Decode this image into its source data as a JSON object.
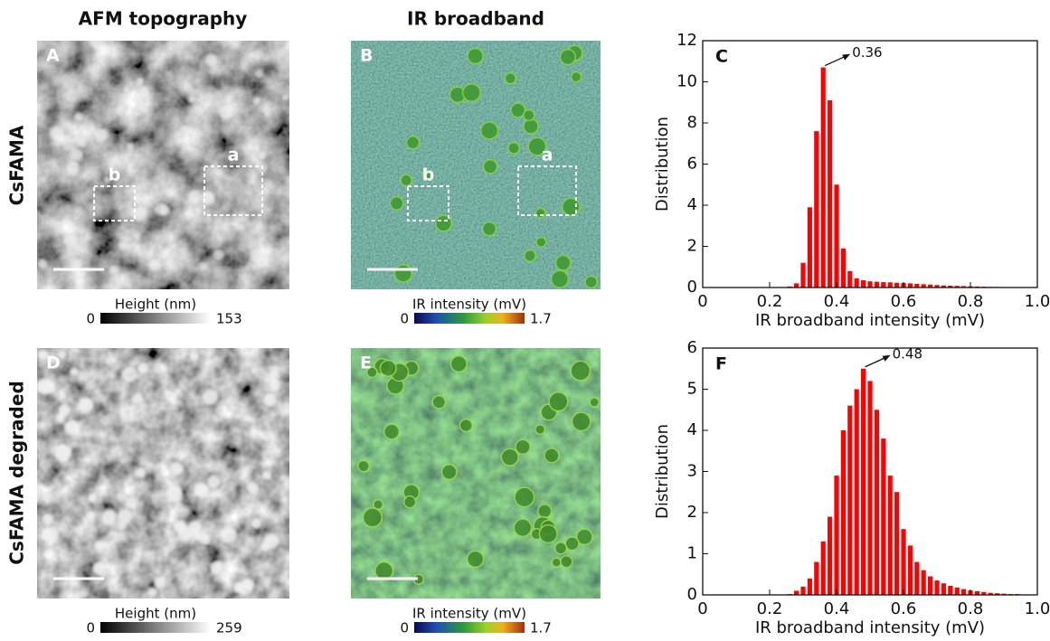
{
  "figure": {
    "column_titles": [
      "AFM topography",
      "IR broadband"
    ],
    "row_titles": [
      "CsFAMA",
      "CsFAMA degraded"
    ],
    "panels": [
      {
        "letter": "A",
        "colorbar": {
          "title": "Height (nm)",
          "min": 0,
          "max": 153
        },
        "regions": [
          "a",
          "b"
        ]
      },
      {
        "letter": "B",
        "colorbar": {
          "title": "IR intensity (mV)",
          "min": 0,
          "max": 1.7
        },
        "regions": [
          "a",
          "b"
        ]
      },
      {
        "letter": "D",
        "colorbar": {
          "title": "Height (nm)",
          "min": 0,
          "max": 259
        }
      },
      {
        "letter": "E",
        "colorbar": {
          "title": "IR intensity (mV)",
          "min": 0,
          "max": 1.7
        }
      }
    ]
  },
  "chart_data": [
    {
      "type": "histogram",
      "panel_label": "C",
      "xlabel": "IR broadband intensity (mV)",
      "ylabel": "Distribution",
      "annotation": "0.36",
      "color": "#ff0000",
      "bins": [
        0.25,
        0.27,
        0.29,
        0.31,
        0.33,
        0.35,
        0.37,
        0.39,
        0.41,
        0.43,
        0.45,
        0.47,
        0.49,
        0.51,
        0.53,
        0.55,
        0.57,
        0.59,
        0.61,
        0.63,
        0.65,
        0.67,
        0.69,
        0.71,
        0.73,
        0.75,
        0.77,
        0.79,
        0.81,
        0.83,
        0.85,
        0.87,
        0.89,
        0.91
      ],
      "values": [
        0.05,
        0.2,
        1.2,
        3.9,
        7.6,
        10.7,
        9.1,
        5.0,
        1.9,
        0.8,
        0.45,
        0.35,
        0.3,
        0.28,
        0.26,
        0.25,
        0.23,
        0.22,
        0.2,
        0.18,
        0.16,
        0.14,
        0.12,
        0.1,
        0.09,
        0.08,
        0.07,
        0.06,
        0.05,
        0.04,
        0.03,
        0.03,
        0.02
      ],
      "xlim": [
        0,
        1
      ],
      "xticks": [
        0,
        0.2,
        0.4,
        0.6,
        0.8,
        {
          "value": 1,
          "label": "1.0"
        }
      ],
      "ylim": [
        0,
        12
      ],
      "yticks": [
        0,
        2,
        4,
        6,
        8,
        10,
        12
      ]
    },
    {
      "type": "histogram",
      "panel_label": "F",
      "xlabel": "IR broadband intensity (mV)",
      "ylabel": "Distribution",
      "annotation": "0.48",
      "color": "#ff0000",
      "bins": [
        0.25,
        0.27,
        0.29,
        0.31,
        0.33,
        0.35,
        0.37,
        0.39,
        0.41,
        0.43,
        0.45,
        0.47,
        0.49,
        0.51,
        0.53,
        0.55,
        0.57,
        0.59,
        0.61,
        0.63,
        0.65,
        0.67,
        0.69,
        0.71,
        0.73,
        0.75,
        0.77,
        0.79,
        0.81,
        0.83,
        0.85,
        0.87,
        0.89,
        0.91,
        0.93,
        0.95,
        0.97,
        0.99
      ],
      "values": [
        0.02,
        0.1,
        0.2,
        0.4,
        0.8,
        1.3,
        1.9,
        2.9,
        4.0,
        4.6,
        5.0,
        5.5,
        5.2,
        4.5,
        3.8,
        2.9,
        2.5,
        1.6,
        1.2,
        0.8,
        0.6,
        0.45,
        0.35,
        0.28,
        0.22,
        0.18,
        0.14,
        0.11,
        0.09,
        0.07,
        0.05,
        0.04,
        0.03,
        0.02,
        0.02,
        0.01,
        0.01
      ],
      "xlim": [
        0,
        1
      ],
      "xticks": [
        0,
        0.2,
        0.4,
        0.6,
        0.8,
        {
          "value": 1,
          "label": "1.0"
        }
      ],
      "ylim": [
        0,
        6
      ],
      "yticks": [
        0,
        1,
        2,
        3,
        4,
        5,
        6
      ]
    }
  ]
}
